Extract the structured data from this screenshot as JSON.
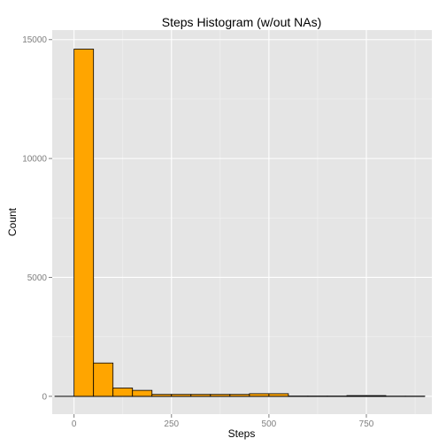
{
  "chart_data": {
    "type": "bar",
    "title": "Steps Histogram (w/out NAs)",
    "xlabel": "Steps",
    "ylabel": "Count",
    "x_ticks": [
      0,
      250,
      500,
      750
    ],
    "y_ticks": [
      0,
      5000,
      10000,
      15000
    ],
    "xlim": [
      -56,
      918
    ],
    "ylim": [
      -750,
      15400
    ],
    "bin_width": 50,
    "bins": [
      {
        "start": 0,
        "end": 50,
        "count": 14600
      },
      {
        "start": 50,
        "end": 100,
        "count": 1400
      },
      {
        "start": 100,
        "end": 150,
        "count": 350
      },
      {
        "start": 150,
        "end": 200,
        "count": 250
      },
      {
        "start": 200,
        "end": 250,
        "count": 80
      },
      {
        "start": 250,
        "end": 300,
        "count": 80
      },
      {
        "start": 300,
        "end": 350,
        "count": 80
      },
      {
        "start": 350,
        "end": 400,
        "count": 80
      },
      {
        "start": 400,
        "end": 450,
        "count": 80
      },
      {
        "start": 450,
        "end": 500,
        "count": 110
      },
      {
        "start": 500,
        "end": 550,
        "count": 110
      },
      {
        "start": 550,
        "end": 600,
        "count": 10
      },
      {
        "start": 600,
        "end": 650,
        "count": 10
      },
      {
        "start": 650,
        "end": 700,
        "count": 10
      },
      {
        "start": 700,
        "end": 750,
        "count": 30
      },
      {
        "start": 750,
        "end": 800,
        "count": 30
      },
      {
        "start": 800,
        "end": 850,
        "count": 5
      },
      {
        "start": 850,
        "end": 900,
        "count": 5
      }
    ],
    "baseline_range": [
      -50,
      900
    ],
    "colors": {
      "bar_fill": "#FFA500",
      "bar_stroke": "#000000",
      "panel_bg": "#E5E5E5",
      "grid_major": "#FFFFFF",
      "grid_minor": "#F2F2F2",
      "tick_label": "#7F7F7F"
    },
    "grid": true,
    "legend": "none"
  }
}
